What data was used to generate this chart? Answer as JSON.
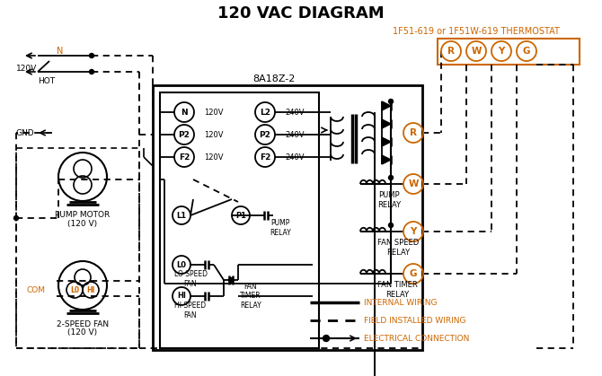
{
  "title": "120 VAC DIAGRAM",
  "bg_color": "#ffffff",
  "fg_color": "#000000",
  "orange_color": "#cc6600",
  "thermostat_label": "1F51-619 or 1F51W-619 THERMOSTAT",
  "control_box_label": "8A18Z-2",
  "legend_items": [
    "INTERNAL WIRING",
    "FIELD INSTALLED WIRING",
    "ELECTRICAL CONNECTION"
  ]
}
